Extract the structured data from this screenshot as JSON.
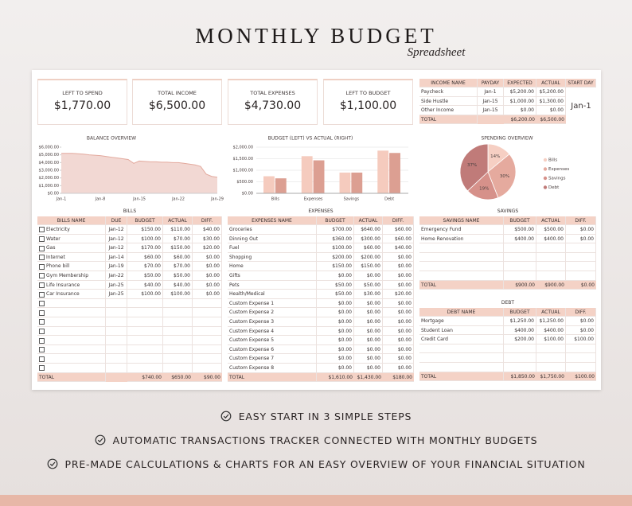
{
  "header": {
    "title": "MONTHLY BUDGET",
    "subtitle": "Spreadsheet"
  },
  "summary": [
    {
      "label": "LEFT TO SPEND",
      "value": "$1,770.00"
    },
    {
      "label": "TOTAL INCOME",
      "value": "$6,500.00"
    },
    {
      "label": "TOTAL EXPENSES",
      "value": "$4,730.00"
    },
    {
      "label": "LEFT TO BUDGET",
      "value": "$1,100.00"
    }
  ],
  "income": {
    "columns": [
      "INCOME NAME",
      "PAYDAY",
      "EXPECTED",
      "ACTUAL"
    ],
    "rows": [
      [
        "Paycheck",
        "Jan-1",
        "$5,200.00",
        "$5,200.00"
      ],
      [
        "Side Hustle",
        "Jan-15",
        "$1,000.00",
        "$1,300.00"
      ],
      [
        "Other Income",
        "Jan-15",
        "$0.00",
        "$0.00"
      ]
    ],
    "total": {
      "label": "TOTAL",
      "values": [
        "$6,200.00",
        "$6,500.00"
      ]
    },
    "start_day_label": "START DAY",
    "start_day": "Jan-1"
  },
  "balance_chart": {
    "type": "line",
    "title": "BALANCE OVERVIEW",
    "categories": [
      "Jan-1",
      null,
      null,
      null,
      null,
      null,
      null,
      "Jan-8",
      null,
      null,
      null,
      null,
      null,
      null,
      "Jan-15",
      null,
      null,
      null,
      null,
      null,
      null,
      "Jan-22",
      null,
      null,
      null,
      null,
      null,
      null,
      "Jan-29"
    ],
    "values": [
      5200,
      5200,
      5200,
      5150,
      5100,
      5000,
      4950,
      4900,
      4800,
      4700,
      4600,
      4500,
      4400,
      3900,
      4200,
      4150,
      4100,
      4100,
      4050,
      4050,
      4000,
      4000,
      3900,
      3800,
      3700,
      3500,
      2500,
      2200,
      2100
    ],
    "color": "#e3a99d",
    "ylim": [
      0,
      6000
    ],
    "yticks": [
      {
        "value": 0,
        "label": "$0.00"
      },
      {
        "value": 1000,
        "label": "$1,000.00"
      },
      {
        "value": 2000,
        "label": "$2,000.00"
      },
      {
        "value": 3000,
        "label": "$3,000.00"
      },
      {
        "value": 4000,
        "label": "$4,000.00"
      },
      {
        "value": 5000,
        "label": "$5,000.00"
      },
      {
        "value": 6000,
        "label": "$6,000.00"
      }
    ]
  },
  "budget_chart": {
    "type": "bar",
    "title": "BUDGET (LEFT) VS ACTUAL (RIGHT)",
    "categories": [
      "Bills",
      "Expenses",
      "Savings",
      "Debt"
    ],
    "series": [
      {
        "color": "#f5cbbe",
        "values": [
          740,
          1610,
          900,
          1850
        ]
      },
      {
        "color": "#dc9f92",
        "values": [
          650,
          1430,
          900,
          1750
        ]
      }
    ],
    "ylim": [
      0,
      2000
    ],
    "yticks": [
      {
        "value": 0,
        "label": "$0.00"
      },
      {
        "value": 500,
        "label": "$500.00"
      },
      {
        "value": 1000,
        "label": "$1,000.00"
      },
      {
        "value": 1500,
        "label": "$1,500.00"
      },
      {
        "value": 2000,
        "label": "$2,000.00"
      }
    ],
    "grid": true
  },
  "spending_chart": {
    "type": "pie",
    "title": "SPENDING OVERVIEW",
    "categories": [
      "Bills",
      "Expenses",
      "Savings",
      "Debt"
    ],
    "values": [
      14,
      30,
      19,
      37
    ],
    "value_labels": [
      "14%",
      "30%",
      "19%",
      "37%"
    ],
    "colors": [
      "#f6cfc3",
      "#e5aa9e",
      "#d6918a",
      "#c07b79"
    ],
    "legend": "right"
  },
  "bills": {
    "title": "BILLS",
    "columns": [
      "BILLS NAME",
      "DUE",
      "BUDGET",
      "ACTUAL",
      "DIFF."
    ],
    "rows": [
      [
        "Electricity",
        "Jan-12",
        "$150.00",
        "$110.00",
        "$40.00"
      ],
      [
        "Water",
        "Jan-12",
        "$100.00",
        "$70.00",
        "$30.00"
      ],
      [
        "Gas",
        "Jan-12",
        "$170.00",
        "$150.00",
        "$20.00"
      ],
      [
        "Internet",
        "Jan-14",
        "$60.00",
        "$60.00",
        "$0.00"
      ],
      [
        "Phone bill",
        "Jan-19",
        "$70.00",
        "$70.00",
        "$0.00"
      ],
      [
        "Gym Membership",
        "Jan-22",
        "$50.00",
        "$50.00",
        "$0.00"
      ],
      [
        "Life Insurance",
        "Jan-25",
        "$40.00",
        "$40.00",
        "$0.00"
      ],
      [
        "Car Insurance",
        "Jan-25",
        "$100.00",
        "$100.00",
        "$0.00"
      ]
    ],
    "total": {
      "label": "TOTAL",
      "values": [
        "$740.00",
        "$650.00",
        "$90.00"
      ]
    }
  },
  "expenses": {
    "title": "EXPENSES",
    "columns": [
      "EXPENSES NAME",
      "BUDGET",
      "ACTUAL",
      "DIFF."
    ],
    "rows": [
      [
        "Groceries",
        "$700.00",
        "$640.00",
        "$60.00"
      ],
      [
        "Dinning Out",
        "$360.00",
        "$300.00",
        "$60.00"
      ],
      [
        "Fuel",
        "$100.00",
        "$60.00",
        "$40.00"
      ],
      [
        "Shopping",
        "$200.00",
        "$200.00",
        "$0.00"
      ],
      [
        "Home",
        "$150.00",
        "$150.00",
        "$0.00"
      ],
      [
        "Gifts",
        "$0.00",
        "$0.00",
        "$0.00"
      ],
      [
        "Pets",
        "$50.00",
        "$50.00",
        "$0.00"
      ],
      [
        "Health/Medical",
        "$50.00",
        "$30.00",
        "$20.00"
      ],
      [
        "Custom Expense 1",
        "$0.00",
        "$0.00",
        "$0.00"
      ],
      [
        "Custom Expense 2",
        "$0.00",
        "$0.00",
        "$0.00"
      ],
      [
        "Custom Expense 3",
        "$0.00",
        "$0.00",
        "$0.00"
      ],
      [
        "Custom Expense 4",
        "$0.00",
        "$0.00",
        "$0.00"
      ],
      [
        "Custom Expense 5",
        "$0.00",
        "$0.00",
        "$0.00"
      ],
      [
        "Custom Expense 6",
        "$0.00",
        "$0.00",
        "$0.00"
      ],
      [
        "Custom Expense 7",
        "$0.00",
        "$0.00",
        "$0.00"
      ],
      [
        "Custom Expense 8",
        "$0.00",
        "$0.00",
        "$0.00"
      ]
    ],
    "total": {
      "label": "TOTAL",
      "values": [
        "$1,610.00",
        "$1,430.00",
        "$180.00"
      ]
    }
  },
  "savings": {
    "title": "SAVINGS",
    "columns": [
      "SAVINGS NAME",
      "BUDGET",
      "ACTUAL",
      "DIFF."
    ],
    "rows": [
      [
        "Emergency Fund",
        "$500.00",
        "$500.00",
        "$0.00"
      ],
      [
        "Home Renovation",
        "$400.00",
        "$400.00",
        "$0.00"
      ]
    ],
    "total": {
      "label": "TOTAL",
      "values": [
        "$900.00",
        "$900.00",
        "$0.00"
      ]
    }
  },
  "debt": {
    "title": "DEBT",
    "columns": [
      "DEBT NAME",
      "BUDGET",
      "ACTUAL",
      "DIFF."
    ],
    "rows": [
      [
        "Mortgage",
        "$1,250.00",
        "$1,250.00",
        "$0.00"
      ],
      [
        "Student Loan",
        "$400.00",
        "$400.00",
        "$0.00"
      ],
      [
        "Credit Card",
        "$200.00",
        "$100.00",
        "$100.00"
      ]
    ],
    "total": {
      "label": "TOTAL",
      "values": [
        "$1,850.00",
        "$1,750.00",
        "$100.00"
      ]
    }
  },
  "features": [
    "EASY START IN 3 SIMPLE STEPS",
    "AUTOMATIC TRANSACTIONS TRACKER CONNECTED WITH MONTHLY BUDGETS",
    "PRE-MADE CALCULATIONS & CHARTS FOR AN EASY OVERVIEW OF YOUR FINANCIAL SITUATION"
  ]
}
